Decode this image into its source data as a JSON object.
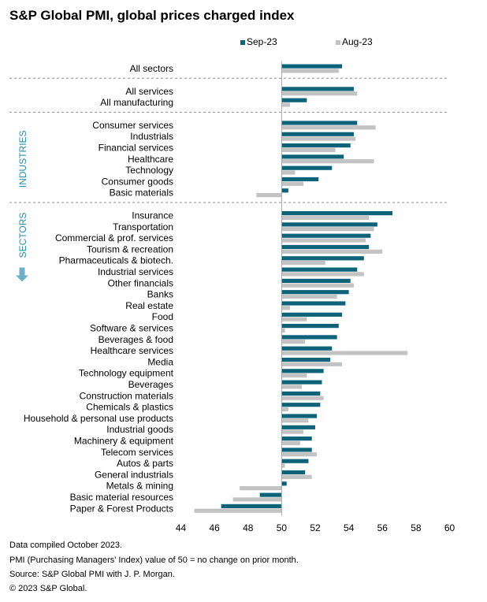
{
  "chart_data": {
    "type": "bar",
    "orientation": "horizontal",
    "title": "S&P Global PMI, global prices charged index",
    "series": [
      {
        "name": "Sep-23",
        "color": "#0f6378"
      },
      {
        "name": "Aug-23",
        "color": "#c3c3c3"
      }
    ],
    "legend_position": "top-right",
    "xlim": [
      44,
      60
    ],
    "xticks": [
      "44",
      "46",
      "48",
      "50",
      "52",
      "54",
      "56",
      "58",
      "60"
    ],
    "baseline": 50,
    "groups": [
      {
        "label": "",
        "items": [
          {
            "category": "All sectors",
            "sep": 53.6,
            "aug": 53.4
          }
        ]
      },
      {
        "label": "",
        "items": [
          {
            "category": "All services",
            "sep": 54.3,
            "aug": 54.5
          },
          {
            "category": "All manufacturing",
            "sep": 51.5,
            "aug": 50.5
          }
        ]
      },
      {
        "label": "INDUSTRIES",
        "items": [
          {
            "category": "Consumer services",
            "sep": 54.5,
            "aug": 55.6
          },
          {
            "category": "Industrials",
            "sep": 54.3,
            "aug": 54.4
          },
          {
            "category": "Financial services",
            "sep": 54.1,
            "aug": 53.2
          },
          {
            "category": "Healthcare",
            "sep": 53.7,
            "aug": 55.5
          },
          {
            "category": "Technology",
            "sep": 53.0,
            "aug": 50.8
          },
          {
            "category": "Consumer goods",
            "sep": 52.2,
            "aug": 51.3
          },
          {
            "category": "Basic materials",
            "sep": 50.4,
            "aug": 48.5
          }
        ]
      },
      {
        "label": "SECTORS",
        "items": [
          {
            "category": "Insurance",
            "sep": 56.6,
            "aug": 55.2
          },
          {
            "category": "Transportation",
            "sep": 55.7,
            "aug": 55.5
          },
          {
            "category": "Commercial & prof. services",
            "sep": 55.3,
            "aug": 55.0
          },
          {
            "category": "Tourism & recreation",
            "sep": 55.2,
            "aug": 56.0
          },
          {
            "category": "Pharmaceuticals & biotech.",
            "sep": 54.9,
            "aug": 52.6
          },
          {
            "category": "Industrial services",
            "sep": 54.5,
            "aug": 54.9
          },
          {
            "category": "Other financials",
            "sep": 54.1,
            "aug": 54.3
          },
          {
            "category": "Banks",
            "sep": 54.0,
            "aug": 53.3
          },
          {
            "category": "Real estate",
            "sep": 53.8,
            "aug": 50.5
          },
          {
            "category": "Food",
            "sep": 53.6,
            "aug": 51.5
          },
          {
            "category": "Software & services",
            "sep": 53.4,
            "aug": 50.2
          },
          {
            "category": "Beverages & food",
            "sep": 53.3,
            "aug": 51.4
          },
          {
            "category": "Healthcare services",
            "sep": 53.0,
            "aug": 57.5
          },
          {
            "category": "Media",
            "sep": 52.9,
            "aug": 53.6
          },
          {
            "category": "Technology equipment",
            "sep": 52.5,
            "aug": 51.5
          },
          {
            "category": "Beverages",
            "sep": 52.4,
            "aug": 51.2
          },
          {
            "category": "Construction materials",
            "sep": 52.3,
            "aug": 52.5
          },
          {
            "category": "Chemicals & plastics",
            "sep": 52.3,
            "aug": 50.4
          },
          {
            "category": "Household & personal use products",
            "sep": 52.1,
            "aug": 51.6
          },
          {
            "category": "Industrial goods",
            "sep": 52.0,
            "aug": 51.3
          },
          {
            "category": "Machinery & equipment",
            "sep": 51.8,
            "aug": 51.1
          },
          {
            "category": "Telecom services",
            "sep": 51.8,
            "aug": 52.1
          },
          {
            "category": "Autos & parts",
            "sep": 51.6,
            "aug": 50.2
          },
          {
            "category": "General industrials",
            "sep": 51.4,
            "aug": 51.8
          },
          {
            "category": "Metals & mining",
            "sep": 50.3,
            "aug": 47.5
          },
          {
            "category": "Basic material resources",
            "sep": 48.7,
            "aug": 47.1
          },
          {
            "category": "Paper & Forest Products",
            "sep": 46.4,
            "aug": 44.8
          }
        ]
      }
    ]
  },
  "footnotes": [
    "Data compiled October 2023.",
    "PMI (Purchasing Managers' Index) value of 50 = no change on prior month.",
    "Source: S&P Global PMI with J. P. Morgan.",
    "© 2023 S&P Global."
  ],
  "colors": {
    "group_label": "#2a8fae",
    "axis": "#a6a6a6",
    "separator": "#8c8c8c"
  }
}
